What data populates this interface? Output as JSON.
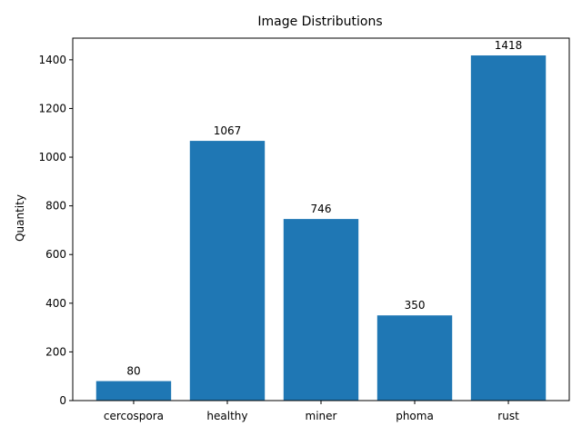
{
  "chart_data": {
    "type": "bar",
    "title": "Image Distributions",
    "xlabel": "",
    "ylabel": "Quantity",
    "categories": [
      "cercospora",
      "healthy",
      "miner",
      "phoma",
      "rust"
    ],
    "values": [
      80,
      1067,
      746,
      350,
      1418
    ],
    "ylim": [
      0,
      1489
    ],
    "yticks": [
      0,
      200,
      400,
      600,
      800,
      1000,
      1200,
      1400
    ],
    "grid": false,
    "legend": "none",
    "bar_color": "#1f77b4"
  }
}
